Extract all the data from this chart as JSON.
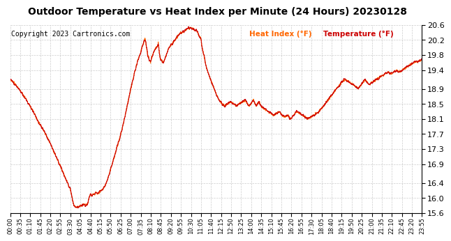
{
  "title": "Outdoor Temperature vs Heat Index per Minute (24 Hours) 20230128",
  "copyright_text": "Copyright 2023 Cartronics.com",
  "legend_heat_index": "Heat Index (°F)",
  "legend_temperature": "Temperature (°F)",
  "y_min": 15.6,
  "y_max": 20.6,
  "y_ticks": [
    15.6,
    16.0,
    16.4,
    16.9,
    17.3,
    17.7,
    18.1,
    18.5,
    18.9,
    19.4,
    19.8,
    20.2,
    20.6
  ],
  "x_tick_labels": [
    "00:00",
    "00:35",
    "01:10",
    "01:45",
    "02:20",
    "02:55",
    "03:30",
    "04:05",
    "04:40",
    "05:15",
    "05:50",
    "06:25",
    "07:00",
    "07:35",
    "08:10",
    "08:45",
    "09:20",
    "09:55",
    "10:30",
    "11:05",
    "11:40",
    "12:15",
    "12:50",
    "13:25",
    "14:00",
    "14:35",
    "15:10",
    "15:45",
    "16:20",
    "16:55",
    "17:30",
    "18:05",
    "18:40",
    "19:15",
    "19:50",
    "20:25",
    "21:00",
    "21:35",
    "22:10",
    "22:45",
    "23:20",
    "23:55"
  ],
  "background_color": "#ffffff",
  "line_color_temp": "#cc0000",
  "line_color_heat": "#ff6600",
  "grid_color": "#cccccc",
  "title_color": "#000000",
  "copyright_color": "#000000",
  "legend_color_heat": "#ff6600",
  "legend_color_temp": "#cc0000",
  "control_points": [
    [
      0,
      19.15
    ],
    [
      20,
      19.0
    ],
    [
      40,
      18.8
    ],
    [
      60,
      18.55
    ],
    [
      80,
      18.3
    ],
    [
      100,
      18.0
    ],
    [
      120,
      17.75
    ],
    [
      140,
      17.45
    ],
    [
      160,
      17.1
    ],
    [
      180,
      16.75
    ],
    [
      200,
      16.4
    ],
    [
      210,
      16.2
    ],
    [
      215,
      16.05
    ],
    [
      220,
      15.85
    ],
    [
      225,
      15.78
    ],
    [
      230,
      15.75
    ],
    [
      240,
      15.76
    ],
    [
      245,
      15.8
    ],
    [
      250,
      15.78
    ],
    [
      255,
      15.82
    ],
    [
      260,
      15.83
    ],
    [
      265,
      15.81
    ],
    [
      270,
      15.83
    ],
    [
      275,
      16.0
    ],
    [
      280,
      16.1
    ],
    [
      285,
      16.05
    ],
    [
      290,
      16.1
    ],
    [
      295,
      16.1
    ],
    [
      300,
      16.15
    ],
    [
      305,
      16.1
    ],
    [
      310,
      16.15
    ],
    [
      320,
      16.2
    ],
    [
      330,
      16.3
    ],
    [
      340,
      16.5
    ],
    [
      360,
      17.0
    ],
    [
      390,
      17.8
    ],
    [
      410,
      18.5
    ],
    [
      430,
      19.2
    ],
    [
      445,
      19.65
    ],
    [
      455,
      19.85
    ],
    [
      460,
      20.0
    ],
    [
      465,
      20.1
    ],
    [
      468,
      20.2
    ],
    [
      470,
      20.22
    ],
    [
      472,
      20.2
    ],
    [
      475,
      20.05
    ],
    [
      478,
      19.9
    ],
    [
      480,
      19.8
    ],
    [
      483,
      19.75
    ],
    [
      485,
      19.7
    ],
    [
      487,
      19.65
    ],
    [
      490,
      19.6
    ],
    [
      495,
      19.75
    ],
    [
      500,
      19.85
    ],
    [
      505,
      19.95
    ],
    [
      510,
      20.0
    ],
    [
      515,
      20.05
    ],
    [
      517,
      20.1
    ],
    [
      519,
      20.0
    ],
    [
      521,
      19.85
    ],
    [
      523,
      19.75
    ],
    [
      525,
      19.7
    ],
    [
      530,
      19.65
    ],
    [
      535,
      19.6
    ],
    [
      538,
      19.65
    ],
    [
      541,
      19.72
    ],
    [
      545,
      19.8
    ],
    [
      550,
      19.9
    ],
    [
      555,
      20.0
    ],
    [
      560,
      20.05
    ],
    [
      565,
      20.1
    ],
    [
      570,
      20.15
    ],
    [
      575,
      20.2
    ],
    [
      580,
      20.25
    ],
    [
      585,
      20.3
    ],
    [
      590,
      20.35
    ],
    [
      595,
      20.38
    ],
    [
      600,
      20.4
    ],
    [
      605,
      20.42
    ],
    [
      610,
      20.45
    ],
    [
      620,
      20.5
    ],
    [
      630,
      20.52
    ],
    [
      640,
      20.5
    ],
    [
      650,
      20.45
    ],
    [
      655,
      20.4
    ],
    [
      660,
      20.3
    ],
    [
      665,
      20.25
    ],
    [
      667,
      20.2
    ],
    [
      669,
      20.05
    ],
    [
      672,
      19.95
    ],
    [
      675,
      19.85
    ],
    [
      678,
      19.75
    ],
    [
      680,
      19.65
    ],
    [
      683,
      19.55
    ],
    [
      686,
      19.45
    ],
    [
      690,
      19.35
    ],
    [
      695,
      19.25
    ],
    [
      700,
      19.15
    ],
    [
      710,
      18.95
    ],
    [
      720,
      18.75
    ],
    [
      730,
      18.6
    ],
    [
      740,
      18.5
    ],
    [
      750,
      18.45
    ],
    [
      760,
      18.5
    ],
    [
      770,
      18.55
    ],
    [
      780,
      18.5
    ],
    [
      790,
      18.45
    ],
    [
      800,
      18.5
    ],
    [
      810,
      18.55
    ],
    [
      820,
      18.6
    ],
    [
      825,
      18.55
    ],
    [
      830,
      18.5
    ],
    [
      835,
      18.45
    ],
    [
      840,
      18.5
    ],
    [
      845,
      18.55
    ],
    [
      850,
      18.6
    ],
    [
      855,
      18.5
    ],
    [
      860,
      18.45
    ],
    [
      865,
      18.5
    ],
    [
      870,
      18.55
    ],
    [
      875,
      18.45
    ],
    [
      880,
      18.4
    ],
    [
      890,
      18.35
    ],
    [
      900,
      18.3
    ],
    [
      910,
      18.25
    ],
    [
      920,
      18.2
    ],
    [
      930,
      18.25
    ],
    [
      940,
      18.3
    ],
    [
      950,
      18.2
    ],
    [
      960,
      18.15
    ],
    [
      970,
      18.2
    ],
    [
      975,
      18.15
    ],
    [
      980,
      18.1
    ],
    [
      990,
      18.2
    ],
    [
      1000,
      18.3
    ],
    [
      1010,
      18.25
    ],
    [
      1020,
      18.2
    ],
    [
      1030,
      18.15
    ],
    [
      1040,
      18.1
    ],
    [
      1050,
      18.15
    ],
    [
      1060,
      18.2
    ],
    [
      1070,
      18.25
    ],
    [
      1080,
      18.3
    ],
    [
      1090,
      18.4
    ],
    [
      1100,
      18.5
    ],
    [
      1110,
      18.6
    ],
    [
      1120,
      18.7
    ],
    [
      1130,
      18.8
    ],
    [
      1140,
      18.9
    ],
    [
      1150,
      19.0
    ],
    [
      1160,
      19.1
    ],
    [
      1170,
      19.15
    ],
    [
      1180,
      19.1
    ],
    [
      1190,
      19.05
    ],
    [
      1200,
      19.0
    ],
    [
      1210,
      18.95
    ],
    [
      1215,
      18.9
    ],
    [
      1220,
      18.95
    ],
    [
      1225,
      19.0
    ],
    [
      1230,
      19.05
    ],
    [
      1235,
      19.1
    ],
    [
      1240,
      19.15
    ],
    [
      1245,
      19.1
    ],
    [
      1250,
      19.05
    ],
    [
      1255,
      19.0
    ],
    [
      1260,
      19.05
    ],
    [
      1270,
      19.1
    ],
    [
      1280,
      19.15
    ],
    [
      1290,
      19.2
    ],
    [
      1300,
      19.25
    ],
    [
      1310,
      19.3
    ],
    [
      1320,
      19.35
    ],
    [
      1330,
      19.3
    ],
    [
      1340,
      19.35
    ],
    [
      1350,
      19.4
    ],
    [
      1360,
      19.35
    ],
    [
      1370,
      19.4
    ],
    [
      1380,
      19.45
    ],
    [
      1390,
      19.5
    ],
    [
      1400,
      19.55
    ],
    [
      1410,
      19.6
    ],
    [
      1420,
      19.62
    ],
    [
      1430,
      19.65
    ],
    [
      1439,
      19.68
    ]
  ]
}
